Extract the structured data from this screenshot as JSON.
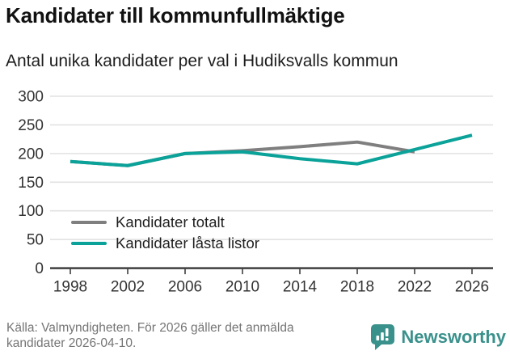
{
  "chart_data": {
    "type": "line",
    "title": "Kandidater till kommunfullmäktige",
    "subtitle": "Antal unika kandidater per val i Hudiksvalls kommun",
    "categories": [
      "1998",
      "2002",
      "2006",
      "2010",
      "2014",
      "2018",
      "2022",
      "2026"
    ],
    "series": [
      {
        "name": "Kandidater totalt",
        "color": "#7f7f7f",
        "values": [
          186,
          179,
          200,
          205,
          212,
          220,
          203,
          null
        ]
      },
      {
        "name": "Kandidater låsta listor",
        "color": "#0aa299",
        "values": [
          186,
          179,
          200,
          203,
          191,
          182,
          207,
          232
        ]
      }
    ],
    "xlabel": "",
    "ylabel": "",
    "ylim": [
      0,
      300
    ],
    "yticks": [
      0,
      50,
      100,
      150,
      200,
      250,
      300
    ],
    "grid": true,
    "legend_position": "inside-lower-left"
  },
  "colors": {
    "grid": "#e2e2e2",
    "axis": "#3f3f3f",
    "axis_text": "#333333",
    "footer_text": "#757575",
    "brand_teal": "#3a918c"
  },
  "footer": {
    "source_line1": "Källa: Valmyndigheten. För 2026 gäller det anmälda",
    "source_line2": "kandidater 2026-04-10.",
    "brand": "Newsworthy"
  }
}
